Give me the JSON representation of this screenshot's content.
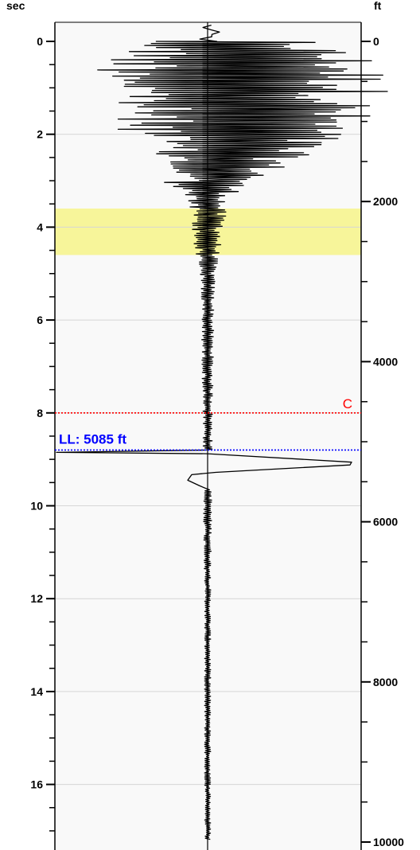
{
  "chart_data": {
    "type": "line",
    "orientation": "vertical",
    "left_axis": {
      "unit_label": "sec",
      "range": [
        0,
        17.2
      ],
      "major_ticks": [
        0,
        2,
        4,
        6,
        8,
        10,
        12,
        14,
        16
      ],
      "major_tick_labels": [
        "0",
        "2",
        "4",
        "6",
        "8",
        "10",
        "12",
        "14",
        "16"
      ],
      "minor_step": 0.5
    },
    "right_axis": {
      "unit_label": "ft",
      "range": [
        0,
        10000
      ],
      "major_ticks": [
        0,
        2000,
        4000,
        6000,
        8000,
        10000
      ],
      "major_tick_labels": [
        "0",
        "2000",
        "4000",
        "6000",
        "8000",
        "10000"
      ],
      "minor_step": 500
    },
    "grid": true,
    "gridlines_sec": [
      2,
      4,
      6,
      8,
      10,
      12,
      14,
      16
    ],
    "highlight_band": {
      "from_sec": 3.6,
      "to_sec": 4.6,
      "color": "#f7f59a"
    },
    "markers": [
      {
        "label": "C",
        "sec": 8.0,
        "color": "#ff0000",
        "style": "dotted"
      },
      {
        "label": "LL: 5085 ft",
        "sec": 8.8,
        "color": "#0000ff",
        "style": "dotted"
      }
    ],
    "kick_event": {
      "sec": 8.85,
      "spike_peak_sec": 9.08,
      "dip_sec": 9.45
    },
    "series": [
      {
        "trace": "amplitude",
        "envelope": [
          [
            0,
            0.6
          ],
          [
            0.5,
            0.98
          ],
          [
            1.0,
            0.98
          ],
          [
            1.5,
            0.9
          ],
          [
            2.0,
            0.75
          ],
          [
            2.5,
            0.5
          ],
          [
            3.0,
            0.3
          ],
          [
            3.5,
            0.12
          ],
          [
            4.0,
            0.12
          ],
          [
            4.5,
            0.08
          ],
          [
            5.0,
            0.05
          ],
          [
            6.0,
            0.04
          ],
          [
            8.8,
            0.03
          ],
          [
            9.4,
            0.03
          ],
          [
            12.0,
            0.02
          ],
          [
            17.2,
            0.02
          ]
        ],
        "color": "#000000"
      }
    ],
    "colors": {
      "trace": "#000000",
      "band": "#f7f59a",
      "marker_c": "#ff0000",
      "marker_ll": "#0000ff",
      "plot_bg": "#f9f9f9"
    }
  }
}
